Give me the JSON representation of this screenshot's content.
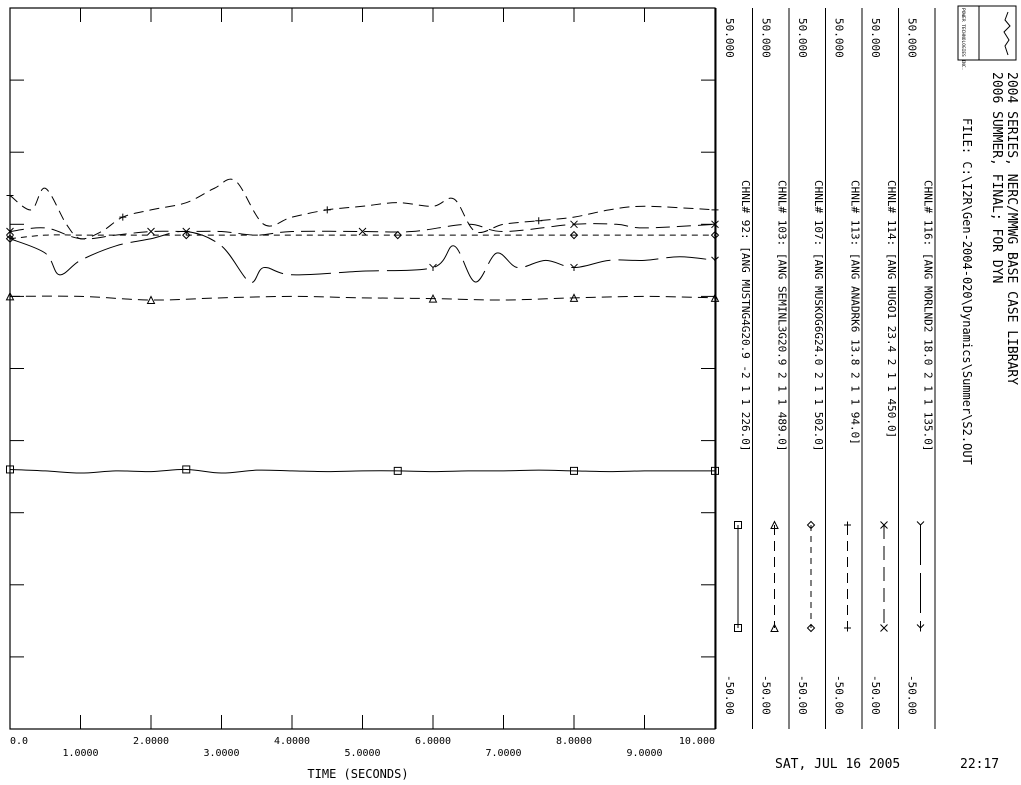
{
  "header": {
    "title_line1": "2004 SERIES, NERC/MMWG BASE CASE LIBRARY",
    "title_line2": "2006 SUMMER, FINAL; FOR DYN",
    "file_label": "FILE: C:\\I2R\\Gen-2004-020\\Dynamics\\Summer\\S2.OUT",
    "logo_text": "POWER TECHNOLOGIES INC."
  },
  "footer": {
    "date": "SAT, JUL 16 2005",
    "time": "22:17"
  },
  "chart_data": {
    "type": "line",
    "title": "",
    "xlabel": "TIME (SECONDS)",
    "ylabel": "",
    "xlim": [
      0.0,
      10.0
    ],
    "ylim": [
      -50.0,
      50.0
    ],
    "x_tick_labels": [
      "0.0",
      "1.0000",
      "2.0000",
      "3.0000",
      "4.0000",
      "5.0000",
      "6.0000",
      "7.0000",
      "8.0000",
      "9.0000",
      "10.000"
    ],
    "series": [
      {
        "name": "CHNL# 116: [ANG MORLND2 18.0 2 1 1 135.0]",
        "channel_label": "CHNL# 116: [ANG MORLND2 18.0 2 1 1 135.0]",
        "ymin_label": "-50.00",
        "ymax_label": "50.000",
        "marker": "Y",
        "dash": "solid-gap",
        "x": [
          0.0,
          0.5,
          0.7,
          1.0,
          1.5,
          2.0,
          2.5,
          3.0,
          3.4,
          3.6,
          4.0,
          5.0,
          6.0,
          6.3,
          6.6,
          6.9,
          7.2,
          7.6,
          8.0,
          8.5,
          9.0,
          9.5,
          10.0
        ],
        "y": [
          18.0,
          16.0,
          13.0,
          15.0,
          17.0,
          18.0,
          19.0,
          17.0,
          12.0,
          14.0,
          13.0,
          13.5,
          14.0,
          17.0,
          12.0,
          16.0,
          14.0,
          15.0,
          14.0,
          15.0,
          15.0,
          15.5,
          15.0
        ]
      },
      {
        "name": "CHNL# 114: [ANG HUGO1 23.4 2 1 1 450.0]",
        "channel_label": "CHNL# 114: [ANG HUGO1 23.4 2 1 1 450.0]",
        "ymin_label": "-50.00",
        "ymax_label": "50.000",
        "marker": "x",
        "dash": "long-dash",
        "x": [
          0.0,
          0.5,
          1.0,
          1.5,
          2.0,
          2.5,
          3.0,
          3.5,
          4.0,
          5.0,
          5.7,
          6.5,
          7.0,
          8.0,
          8.6,
          9.0,
          10.0
        ],
        "y": [
          19.0,
          19.5,
          18.0,
          18.5,
          19.0,
          19.0,
          19.0,
          18.5,
          19.0,
          19.0,
          19.0,
          20.0,
          19.0,
          20.0,
          20.0,
          19.5,
          20.0
        ]
      },
      {
        "name": "CHNL# 113: [ANG ANADRK6 13.8 2 1 1 94.0]",
        "channel_label": "CHNL# 113: [ANG ANADRK6 13.8 2 1 1 94.0]",
        "ymin_label": "-50.00",
        "ymax_label": "50.000",
        "marker": "+",
        "dash": "dash",
        "x": [
          0.0,
          0.3,
          0.5,
          0.8,
          1.0,
          1.3,
          1.6,
          2.0,
          2.5,
          2.9,
          3.2,
          3.6,
          4.0,
          4.5,
          5.0,
          5.5,
          6.0,
          6.3,
          6.6,
          7.0,
          7.5,
          8.0,
          8.5,
          9.0,
          10.0
        ],
        "y": [
          24.0,
          22.0,
          25.0,
          20.0,
          18.0,
          19.0,
          21.0,
          22.0,
          23.0,
          25.0,
          26.0,
          20.0,
          21.0,
          22.0,
          22.5,
          23.0,
          22.5,
          23.5,
          19.0,
          20.0,
          20.5,
          21.0,
          22.0,
          22.5,
          22.0
        ]
      },
      {
        "name": "CHNL# 107: [ANG MUSKOG6G24.0 2 1 1 502.0]",
        "channel_label": "CHNL# 107: [ANG MUSKOG6G24.0 2 1 1 502.0]",
        "ymin_label": "-50.00",
        "ymax_label": "50.000",
        "marker": "diamond",
        "dash": "short-dash",
        "x": [
          0.0,
          0.5,
          1.0,
          1.5,
          2.0,
          2.5,
          3.0,
          3.5,
          4.0,
          4.5,
          5.0,
          5.5,
          6.0,
          6.5,
          7.0,
          7.5,
          8.0,
          8.5,
          9.0,
          9.5,
          10.0
        ],
        "y": [
          18.0,
          18.5,
          18.5,
          18.5,
          18.5,
          18.5,
          18.5,
          18.5,
          18.5,
          18.5,
          18.5,
          18.5,
          18.5,
          18.5,
          18.5,
          18.5,
          18.5,
          18.5,
          18.5,
          18.5,
          18.5
        ]
      },
      {
        "name": "CHNL# 103: [ANG SEMINL3G20.9 2 1 1 489.0]",
        "channel_label": "CHNL# 103: [ANG SEMINL3G20.9 2 1 1 489.0]",
        "ymin_label": "-50.00",
        "ymax_label": "50.000",
        "marker": "triangle",
        "dash": "dash",
        "x": [
          0.0,
          1.0,
          2.0,
          3.0,
          4.0,
          5.0,
          6.0,
          7.0,
          8.0,
          9.0,
          10.0
        ],
        "y": [
          10.0,
          10.0,
          9.5,
          9.8,
          10.0,
          9.8,
          9.7,
          9.5,
          9.8,
          10.0,
          9.8
        ]
      },
      {
        "name": "CHNL# 92: [ANG MUSTNG4G20.9 -2 1 1 226.0]",
        "channel_label": "CHNL# 92: [ANG MUSTNG4G20.9 -2 1 1 226.0]",
        "ymin_label": "-50.00",
        "ymax_label": "50.000",
        "marker": "square",
        "dash": "solid",
        "x": [
          0.0,
          0.5,
          1.0,
          1.5,
          2.0,
          2.5,
          3.0,
          3.5,
          4.0,
          4.5,
          5.0,
          5.5,
          6.0,
          6.5,
          7.0,
          7.5,
          8.0,
          8.5,
          9.0,
          9.5,
          10.0
        ],
        "y": [
          -14.0,
          -14.2,
          -14.5,
          -14.2,
          -14.3,
          -14.0,
          -14.5,
          -14.1,
          -14.2,
          -14.3,
          -14.2,
          -14.2,
          -14.3,
          -14.2,
          -14.2,
          -14.1,
          -14.2,
          -14.3,
          -14.2,
          -14.2,
          -14.2
        ]
      }
    ],
    "grid": false,
    "legend_placement": "right"
  }
}
